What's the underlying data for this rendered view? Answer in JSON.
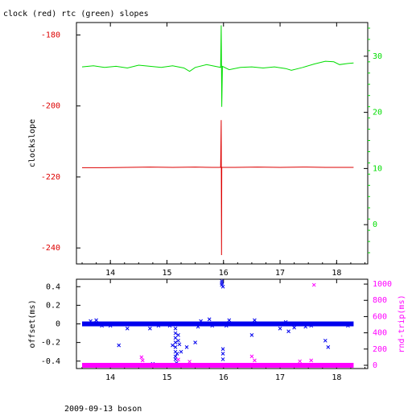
{
  "title": "clock (red) rtc (green) slopes",
  "footer": "2009-09-13 boson",
  "colors": {
    "clock": "#dd0000",
    "rtc": "#00dd00",
    "offset": "#0000ee",
    "rndtrip": "#ff00ff",
    "axis": "#000000"
  },
  "chart_data": [
    {
      "type": "line",
      "title": "clock (red) rtc (green) slopes",
      "ylabel": "clockslope",
      "xlim": [
        13.4,
        18.55
      ],
      "ylim": [
        -244.5,
        -176.5
      ],
      "x_ticks": [
        "14",
        "15",
        "16",
        "17",
        "18"
      ],
      "y_ticks": [
        "-180",
        "-200",
        "-220",
        "-240"
      ],
      "y2_ticks": [
        "30",
        "20",
        "10",
        "0"
      ],
      "y2lim": [
        -7.0,
        36.0
      ],
      "series": [
        {
          "name": "clock",
          "axis": "left",
          "points": [
            [
              13.5,
              -217.4
            ],
            [
              13.9,
              -217.4
            ],
            [
              14.3,
              -217.3
            ],
            [
              14.7,
              -217.2
            ],
            [
              15.1,
              -217.3
            ],
            [
              15.5,
              -217.2
            ],
            [
              15.8,
              -217.3
            ],
            [
              15.95,
              -217.3
            ],
            [
              15.96,
              -204.0
            ],
            [
              15.965,
              -242.0
            ],
            [
              15.97,
              -217.3
            ],
            [
              16.2,
              -217.3
            ],
            [
              16.6,
              -217.2
            ],
            [
              17.0,
              -217.3
            ],
            [
              17.4,
              -217.2
            ],
            [
              17.8,
              -217.3
            ],
            [
              18.3,
              -217.3
            ]
          ]
        },
        {
          "name": "rtc",
          "axis": "right",
          "points": [
            [
              13.5,
              28.1
            ],
            [
              13.7,
              28.3
            ],
            [
              13.9,
              28.0
            ],
            [
              14.1,
              28.2
            ],
            [
              14.3,
              27.9
            ],
            [
              14.5,
              28.4
            ],
            [
              14.7,
              28.2
            ],
            [
              14.9,
              28.0
            ],
            [
              15.1,
              28.3
            ],
            [
              15.3,
              27.9
            ],
            [
              15.4,
              27.3
            ],
            [
              15.5,
              28.0
            ],
            [
              15.7,
              28.5
            ],
            [
              15.85,
              28.2
            ],
            [
              15.95,
              28.0
            ],
            [
              15.96,
              35.5
            ],
            [
              15.97,
              21.0
            ],
            [
              15.98,
              28.2
            ],
            [
              16.1,
              27.6
            ],
            [
              16.3,
              28.0
            ],
            [
              16.5,
              28.1
            ],
            [
              16.7,
              27.9
            ],
            [
              16.9,
              28.1
            ],
            [
              17.1,
              27.8
            ],
            [
              17.2,
              27.5
            ],
            [
              17.4,
              28.0
            ],
            [
              17.6,
              28.6
            ],
            [
              17.8,
              29.1
            ],
            [
              17.95,
              29.0
            ],
            [
              18.05,
              28.5
            ],
            [
              18.2,
              28.7
            ],
            [
              18.3,
              28.8
            ]
          ]
        }
      ]
    },
    {
      "type": "scatter",
      "ylabel": "offset(ms)",
      "y2label": "rnd-trip(ms)",
      "xlim": [
        13.4,
        18.55
      ],
      "ylim": [
        -0.48,
        0.48
      ],
      "y2lim": [
        -40,
        1060
      ],
      "x_ticks": [
        "14",
        "15",
        "16",
        "17",
        "18"
      ],
      "y_ticks": [
        "0.4",
        "0.2",
        "0",
        "-0.2",
        "-0.4"
      ],
      "y2_ticks": [
        "1000",
        "800",
        "600",
        "400",
        "200",
        "0"
      ],
      "series": [
        {
          "name": "offset",
          "axis": "left",
          "points": [
            [
              13.6,
              0.0
            ],
            [
              13.65,
              0.03
            ],
            [
              13.75,
              0.04
            ],
            [
              13.85,
              -0.02
            ],
            [
              14.0,
              -0.02
            ],
            [
              14.15,
              -0.23
            ],
            [
              14.3,
              -0.05
            ],
            [
              14.7,
              -0.05
            ],
            [
              14.75,
              -0.43
            ],
            [
              14.85,
              -0.02
            ],
            [
              15.05,
              -0.02
            ],
            [
              15.1,
              -0.23
            ],
            [
              15.15,
              -0.05
            ],
            [
              15.15,
              -0.1
            ],
            [
              15.15,
              -0.15
            ],
            [
              15.15,
              -0.2
            ],
            [
              15.15,
              -0.25
            ],
            [
              15.15,
              -0.3
            ],
            [
              15.15,
              -0.35
            ],
            [
              15.15,
              -0.38
            ],
            [
              15.17,
              -0.42
            ],
            [
              15.18,
              -0.32
            ],
            [
              15.2,
              -0.12
            ],
            [
              15.2,
              -0.18
            ],
            [
              15.22,
              -0.22
            ],
            [
              15.25,
              -0.3
            ],
            [
              15.35,
              -0.25
            ],
            [
              15.5,
              -0.2
            ],
            [
              15.55,
              -0.03
            ],
            [
              15.6,
              0.03
            ],
            [
              15.75,
              0.05
            ],
            [
              15.8,
              -0.02
            ],
            [
              15.97,
              0.46
            ],
            [
              15.97,
              0.42
            ],
            [
              15.97,
              0.44
            ],
            [
              15.99,
              0.4
            ],
            [
              15.99,
              -0.27
            ],
            [
              15.99,
              -0.32
            ],
            [
              15.99,
              -0.38
            ],
            [
              16.05,
              -0.02
            ],
            [
              16.1,
              0.04
            ],
            [
              16.5,
              -0.12
            ],
            [
              16.55,
              0.04
            ],
            [
              17.0,
              -0.05
            ],
            [
              17.1,
              0.02
            ],
            [
              17.15,
              -0.08
            ],
            [
              17.25,
              -0.04
            ],
            [
              17.45,
              -0.03
            ],
            [
              17.55,
              -0.02
            ],
            [
              17.8,
              -0.18
            ],
            [
              17.85,
              -0.25
            ],
            [
              18.2,
              -0.02
            ]
          ]
        },
        {
          "name": "rndtrip",
          "axis": "right",
          "points": [
            [
              14.55,
              100
            ],
            [
              14.57,
              60
            ],
            [
              15.2,
              70
            ],
            [
              15.4,
              45
            ],
            [
              16.5,
              110
            ],
            [
              16.55,
              60
            ],
            [
              17.35,
              50
            ],
            [
              17.55,
              60
            ],
            [
              17.6,
              990
            ]
          ]
        }
      ]
    }
  ]
}
